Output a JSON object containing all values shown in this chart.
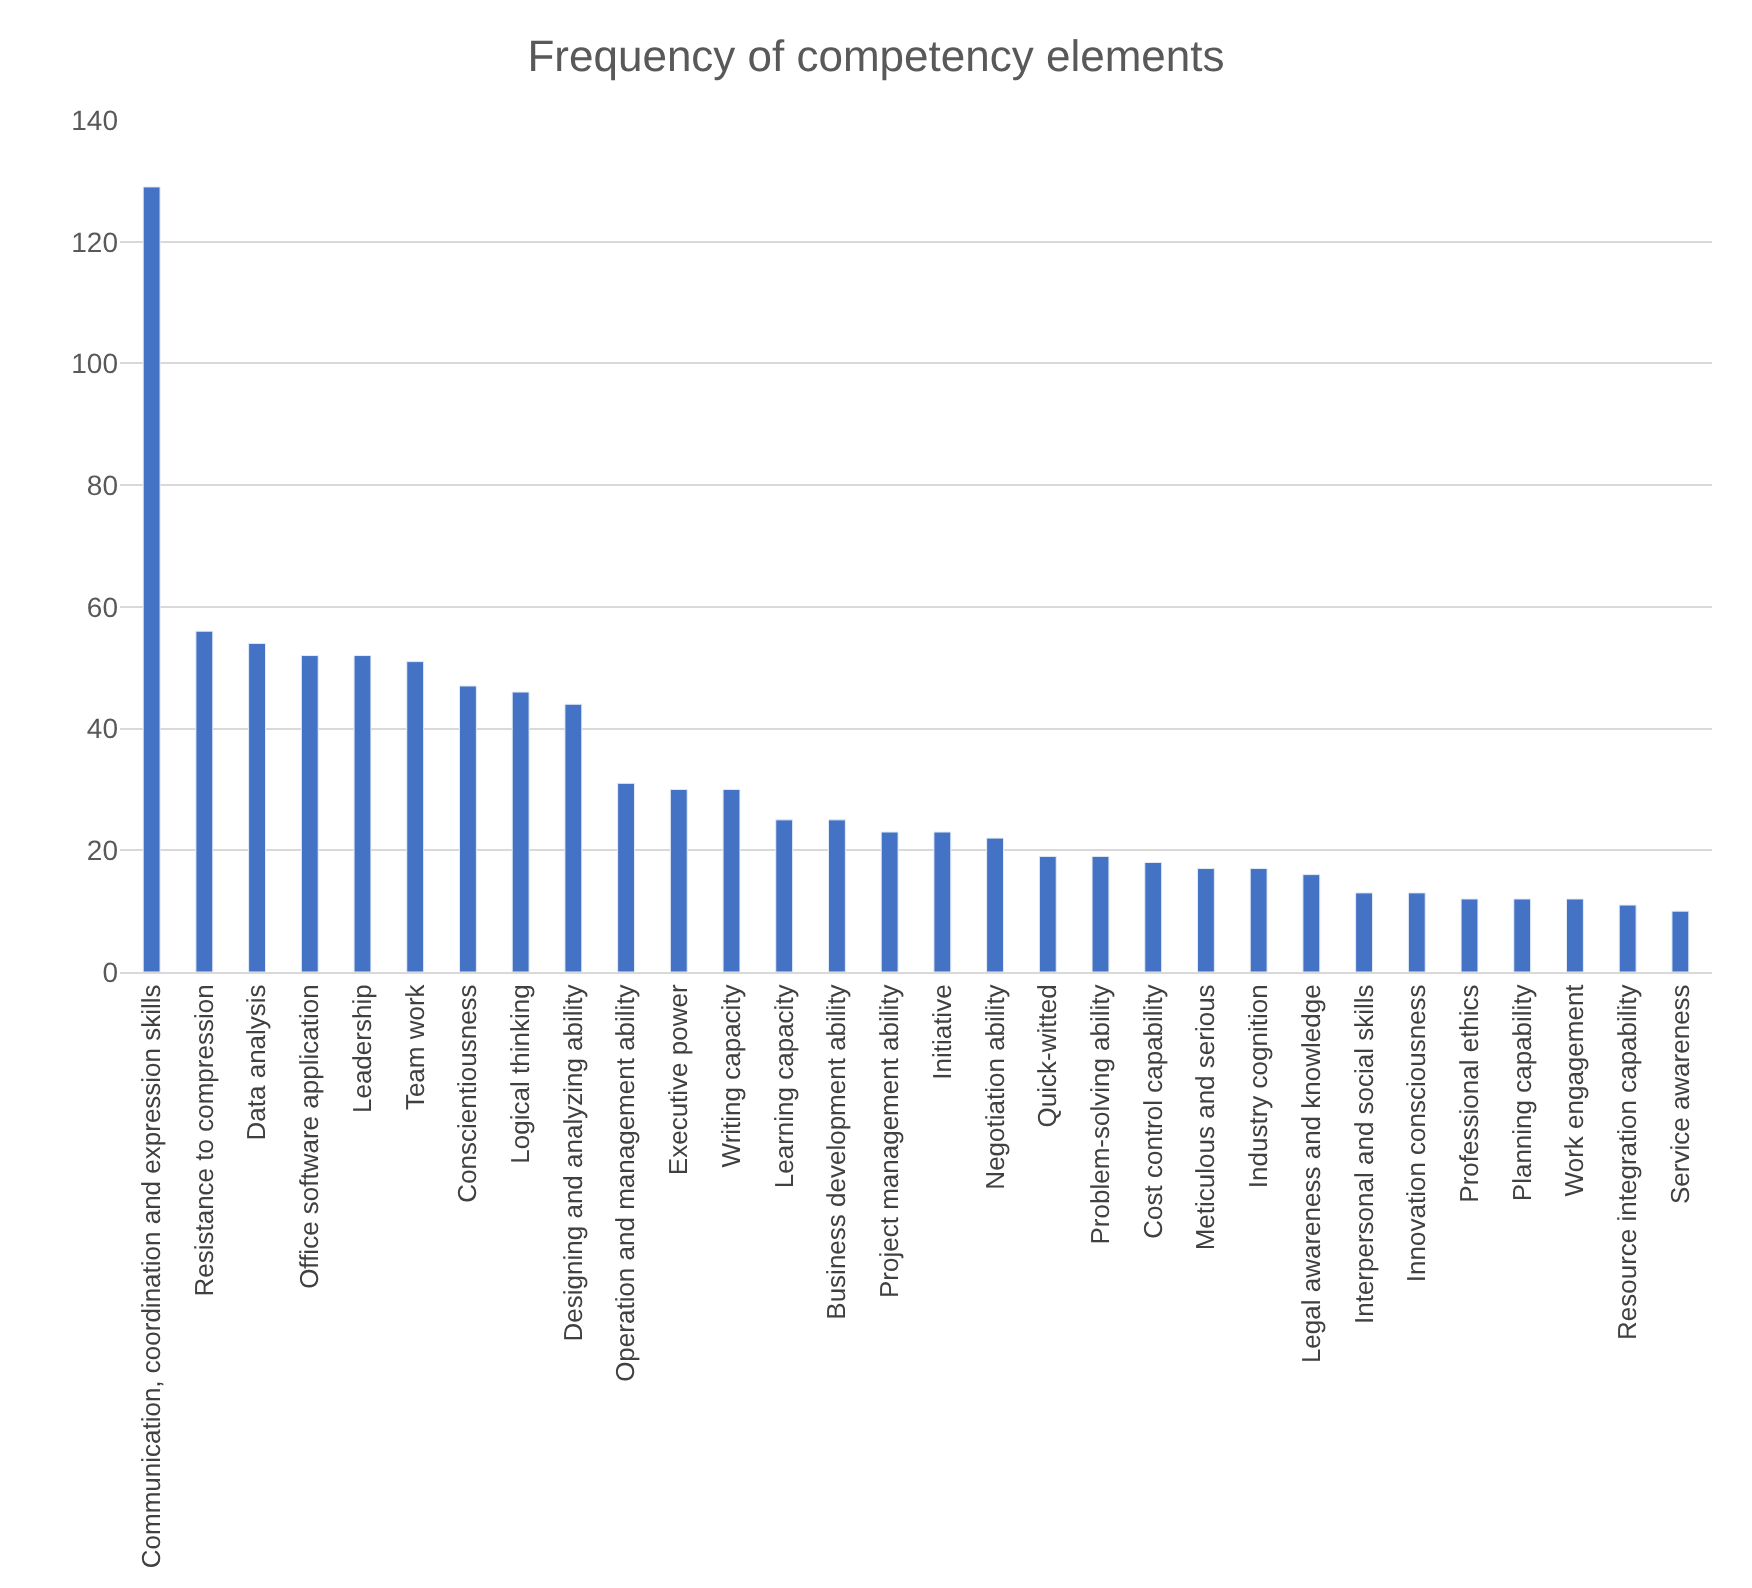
{
  "chart_data": {
    "type": "bar",
    "title": "Frequency of competency elements",
    "categories": [
      "Communication, coordination and expression skills",
      "Resistance to compression",
      "Data analysis",
      "Office software application",
      "Leadership",
      "Team work",
      "Conscientiousness",
      "Logical thinking",
      "Designing and analyzing ability",
      "Operation and management ability",
      "Executive power",
      "Writing capacity",
      "Learning capacity",
      "Business development ability",
      "Project management ability",
      "Initiative",
      "Negotiation ability",
      "Quick-witted",
      "Problem-solving ability",
      "Cost control capability",
      "Meticulous and serious",
      "Industry cognition",
      "Legal awareness and knowledge",
      "Interpersonal and social skills",
      "Innovation consciousness",
      "Professional ethics",
      "Planning capability",
      "Work engagement",
      "Resource integration capability",
      "Service awareness"
    ],
    "values": [
      129,
      56,
      54,
      52,
      52,
      51,
      47,
      46,
      44,
      31,
      30,
      30,
      25,
      25,
      23,
      23,
      22,
      19,
      19,
      18,
      17,
      17,
      16,
      13,
      13,
      12,
      12,
      12,
      11,
      10
    ],
    "color": "#4472c4",
    "ylim": [
      0,
      140
    ],
    "yticks": [
      0,
      20,
      40,
      60,
      80,
      100,
      120,
      140
    ],
    "grid": "y",
    "legend": false
  }
}
